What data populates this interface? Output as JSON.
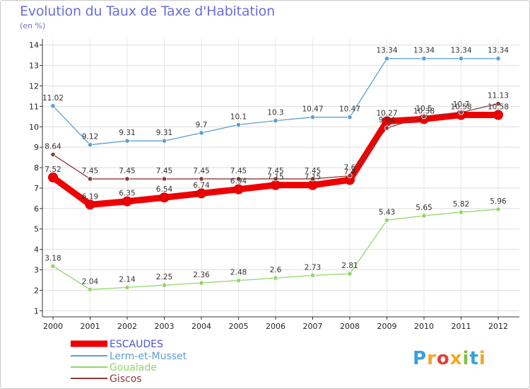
{
  "title": "Evolution du Taux de Taxe d'Habitation",
  "subtitle": "(en %)",
  "logo": {
    "text": "Proxiti",
    "colors": [
      "#3aa0dd",
      "#f5a623",
      "#e0413a",
      "#f5a623",
      "#7dc242",
      "#3aa0dd",
      "#f5a623"
    ]
  },
  "chart_data": {
    "type": "line",
    "categories": [
      "2000",
      "2001",
      "2002",
      "2003",
      "2004",
      "2005",
      "2006",
      "2007",
      "2008",
      "2009",
      "2010",
      "2011",
      "2012"
    ],
    "yticks": [
      "1",
      "2",
      "3",
      "4",
      "5",
      "6",
      "7",
      "8",
      "9",
      "10",
      "11",
      "12",
      "13",
      "14"
    ],
    "ylim": [
      0.7,
      14.3
    ],
    "series": [
      {
        "name": "ESCAUDES",
        "color": "#ee0000",
        "values": [
          7.52,
          6.19,
          6.35,
          6.54,
          6.74,
          6.94,
          7.15,
          7.15,
          7.4,
          10.27,
          10.38,
          10.58,
          10.58
        ],
        "labels": [
          "7.52",
          "6.19",
          "6.35",
          "6.54",
          "6.74",
          "6.94",
          "7.15",
          "7.15",
          "7.4",
          "10.27",
          "10.38",
          "10.58",
          "10.58"
        ]
      },
      {
        "name": "Lerm-et-Musset",
        "color": "#5a9fd4",
        "values": [
          11.02,
          9.12,
          9.31,
          9.31,
          9.7,
          10.1,
          10.3,
          10.47,
          10.47,
          13.34,
          13.34,
          13.34,
          13.34
        ],
        "labels": [
          "11.02",
          "9.12",
          "9.31",
          "9.31",
          "9.7",
          "10.1",
          "10.3",
          "10.47",
          "10.47",
          "13.34",
          "13.34",
          "13.34",
          "13.34"
        ]
      },
      {
        "name": "Goualade",
        "color": "#93d66a",
        "values": [
          3.18,
          2.04,
          2.14,
          2.25,
          2.36,
          2.48,
          2.6,
          2.73,
          2.81,
          5.43,
          5.65,
          5.82,
          5.96
        ],
        "labels": [
          "3.18",
          "2.04",
          "2.14",
          "2.25",
          "2.36",
          "2.48",
          "2.6",
          "2.73",
          "2.81",
          "5.43",
          "5.65",
          "5.82",
          "5.96"
        ]
      },
      {
        "name": "Giscos",
        "color": "#8b3a3a",
        "values": [
          8.64,
          7.45,
          7.45,
          7.45,
          7.45,
          7.45,
          7.45,
          7.45,
          7.6,
          9.94,
          10.5,
          10.7,
          11.13
        ],
        "labels": [
          "8.64",
          "7.45",
          "7.45",
          "7.45",
          "7.45",
          "7.45",
          "7.45",
          "7.45",
          "7.6",
          "9.94",
          "10.5",
          "10.7",
          "11.13"
        ]
      }
    ]
  }
}
